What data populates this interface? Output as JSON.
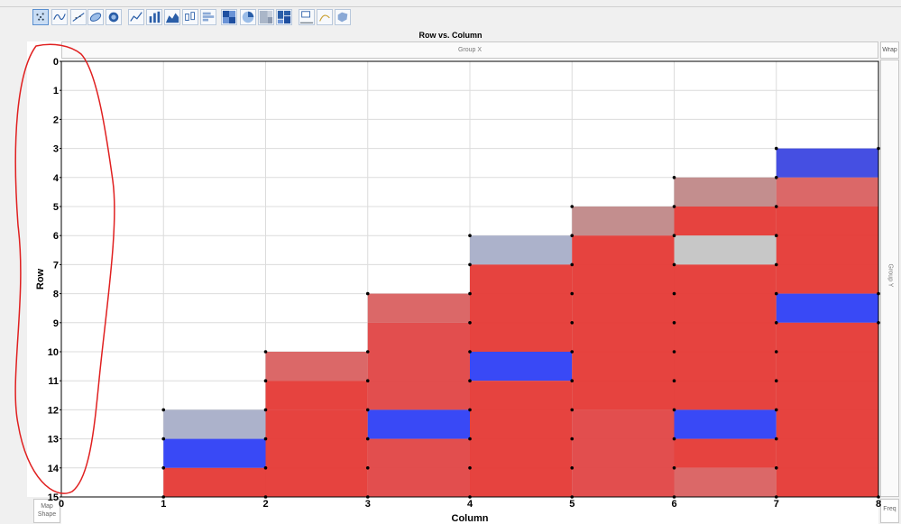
{
  "window": {
    "chart_title": "Row vs. Column"
  },
  "toolbar": {
    "icons": [
      "points-icon",
      "smoother-icon",
      "line-fit-icon",
      "ellipse-icon",
      "contour-icon",
      "line-icon",
      "bar-icon",
      "area-icon",
      "box-plot-icon",
      "histogram-icon",
      "heatmap-icon",
      "pie-icon",
      "treemap-icon",
      "mosaic-icon",
      "caption-box-icon",
      "formula-icon",
      "map-shapes-icon"
    ]
  },
  "drop_zones": {
    "group_x": "Group X",
    "group_y": "Group Y",
    "wrap": "Wrap",
    "map_shape_line1": "Map",
    "map_shape_line2": "Shape",
    "freq": "Freq"
  },
  "colors": {
    "red": "#e53935",
    "red_light": "#d96060",
    "red_mid": "#e04545",
    "blue": "#2e3ff5",
    "blue_dark": "#3b46e0",
    "lavender": "#a8aec8",
    "rose": "#c08888",
    "gray": "#c4c4c4",
    "annotation": "#e02020"
  },
  "chart_data": {
    "type": "heatmap",
    "title": "Row vs. Column",
    "xlabel": "Column",
    "ylabel": "Row",
    "xlim": [
      0,
      8
    ],
    "ylim": [
      0,
      15
    ],
    "y_reversed": true,
    "grid": true,
    "x_ticks": [
      "0",
      "1",
      "2",
      "3",
      "4",
      "5",
      "6",
      "7",
      "8"
    ],
    "y_ticks": [
      "0",
      "1",
      "2",
      "3",
      "4",
      "5",
      "6",
      "7",
      "8",
      "9",
      "10",
      "11",
      "12",
      "13",
      "14",
      "15"
    ],
    "cells": [
      {
        "x0": 1,
        "x1": 2,
        "y0": 12,
        "y1": 13,
        "color": "lavender"
      },
      {
        "x0": 1,
        "x1": 2,
        "y0": 13,
        "y1": 14,
        "color": "blue"
      },
      {
        "x0": 1,
        "x1": 2,
        "y0": 14,
        "y1": 15,
        "color": "red"
      },
      {
        "x0": 2,
        "x1": 3,
        "y0": 10,
        "y1": 11,
        "color": "red_light"
      },
      {
        "x0": 2,
        "x1": 3,
        "y0": 11,
        "y1": 12,
        "color": "red"
      },
      {
        "x0": 2,
        "x1": 3,
        "y0": 12,
        "y1": 15,
        "color": "red"
      },
      {
        "x0": 3,
        "x1": 4,
        "y0": 8,
        "y1": 9,
        "color": "red_light"
      },
      {
        "x0": 3,
        "x1": 4,
        "y0": 9,
        "y1": 12,
        "color": "red_mid"
      },
      {
        "x0": 3,
        "x1": 4,
        "y0": 12,
        "y1": 13,
        "color": "blue"
      },
      {
        "x0": 3,
        "x1": 4,
        "y0": 13,
        "y1": 15,
        "color": "red_mid"
      },
      {
        "x0": 4,
        "x1": 5,
        "y0": 6,
        "y1": 7,
        "color": "lavender"
      },
      {
        "x0": 4,
        "x1": 5,
        "y0": 7,
        "y1": 10,
        "color": "red"
      },
      {
        "x0": 4,
        "x1": 5,
        "y0": 10,
        "y1": 11,
        "color": "blue"
      },
      {
        "x0": 4,
        "x1": 5,
        "y0": 11,
        "y1": 15,
        "color": "red"
      },
      {
        "x0": 5,
        "x1": 6,
        "y0": 5,
        "y1": 6,
        "color": "rose"
      },
      {
        "x0": 5,
        "x1": 6,
        "y0": 6,
        "y1": 12,
        "color": "red"
      },
      {
        "x0": 5,
        "x1": 6,
        "y0": 12,
        "y1": 15,
        "color": "red_mid"
      },
      {
        "x0": 6,
        "x1": 7,
        "y0": 4,
        "y1": 5,
        "color": "rose"
      },
      {
        "x0": 6,
        "x1": 7,
        "y0": 5,
        "y1": 6,
        "color": "red"
      },
      {
        "x0": 6,
        "x1": 7,
        "y0": 6,
        "y1": 7,
        "color": "gray"
      },
      {
        "x0": 6,
        "x1": 7,
        "y0": 7,
        "y1": 12,
        "color": "red"
      },
      {
        "x0": 6,
        "x1": 7,
        "y0": 12,
        "y1": 13,
        "color": "blue"
      },
      {
        "x0": 6,
        "x1": 7,
        "y0": 13,
        "y1": 14,
        "color": "red"
      },
      {
        "x0": 6,
        "x1": 7,
        "y0": 14,
        "y1": 15,
        "color": "red_light"
      },
      {
        "x0": 7,
        "x1": 8,
        "y0": 3,
        "y1": 4,
        "color": "blue_dark"
      },
      {
        "x0": 7,
        "x1": 8,
        "y0": 4,
        "y1": 5,
        "color": "red_light"
      },
      {
        "x0": 7,
        "x1": 8,
        "y0": 5,
        "y1": 8,
        "color": "red"
      },
      {
        "x0": 7,
        "x1": 8,
        "y0": 8,
        "y1": 9,
        "color": "blue"
      },
      {
        "x0": 7,
        "x1": 8,
        "y0": 9,
        "y1": 15,
        "color": "red"
      }
    ],
    "points": [
      [
        1,
        12
      ],
      [
        2,
        12
      ],
      [
        1,
        13
      ],
      [
        2,
        13
      ],
      [
        1,
        14
      ],
      [
        2,
        14
      ],
      [
        2,
        10
      ],
      [
        3,
        10
      ],
      [
        3,
        11
      ],
      [
        3,
        12
      ],
      [
        3,
        13
      ],
      [
        3,
        14
      ],
      [
        2,
        11
      ],
      [
        3,
        8
      ],
      [
        4,
        8
      ],
      [
        4,
        9
      ],
      [
        4,
        12
      ],
      [
        4,
        13
      ],
      [
        4,
        14
      ],
      [
        4,
        6
      ],
      [
        5,
        6
      ],
      [
        4,
        7
      ],
      [
        5,
        7
      ],
      [
        4,
        10
      ],
      [
        5,
        10
      ],
      [
        4,
        11
      ],
      [
        5,
        11
      ],
      [
        5,
        5
      ],
      [
        6,
        5
      ],
      [
        5,
        8
      ],
      [
        5,
        9
      ],
      [
        5,
        12
      ],
      [
        5,
        13
      ],
      [
        5,
        14
      ],
      [
        6,
        4
      ],
      [
        7,
        4
      ],
      [
        6,
        6
      ],
      [
        7,
        6
      ],
      [
        6,
        7
      ],
      [
        7,
        7
      ],
      [
        6,
        8
      ],
      [
        6,
        9
      ],
      [
        6,
        10
      ],
      [
        6,
        11
      ],
      [
        6,
        12
      ],
      [
        7,
        12
      ],
      [
        6,
        13
      ],
      [
        7,
        13
      ],
      [
        6,
        14
      ],
      [
        7,
        14
      ],
      [
        7,
        3
      ],
      [
        8,
        3
      ],
      [
        7,
        8
      ],
      [
        8,
        8
      ],
      [
        7,
        9
      ],
      [
        8,
        9
      ],
      [
        7,
        5
      ],
      [
        7,
        10
      ],
      [
        7,
        11
      ],
      [
        1,
        15
      ],
      [
        2,
        15
      ],
      [
        3,
        15
      ],
      [
        4,
        15
      ],
      [
        5,
        15
      ],
      [
        6,
        15
      ],
      [
        7,
        15
      ],
      [
        8,
        15
      ]
    ]
  }
}
